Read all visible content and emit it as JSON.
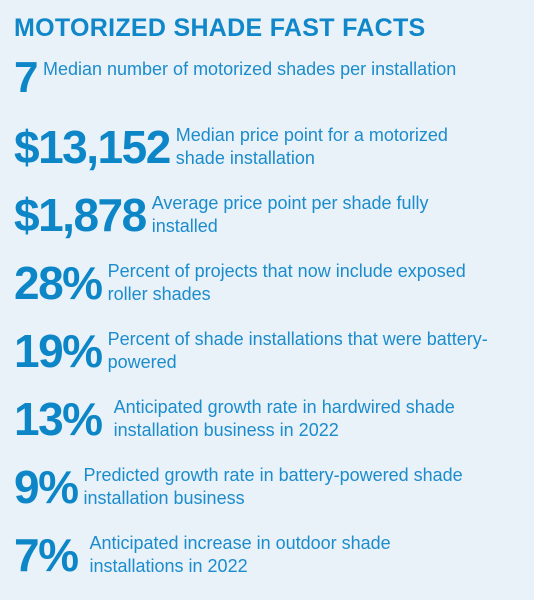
{
  "title": "MOTORIZED SHADE FAST FACTS",
  "facts": [
    {
      "stat": "7",
      "text": "Median number of motorized shades per installation"
    },
    {
      "stat": "$13,152",
      "text": "Median price point for a motorized shade installation"
    },
    {
      "stat": "$1,878",
      "text": "Average price point per shade fully installed"
    },
    {
      "stat": "28%",
      "text": "Percent of projects that now include exposed roller shades"
    },
    {
      "stat": "19%",
      "text": "Percent of shade installations that were battery-powered"
    },
    {
      "stat": "13%",
      "text": "Anticipated growth rate in hardwired shade installation business in 2022"
    },
    {
      "stat": "9%",
      "text": "Predicted growth rate in battery-powered shade installation business"
    },
    {
      "stat": "7%",
      "text": "Anticipated increase in outdoor shade installations in 2022"
    }
  ]
}
